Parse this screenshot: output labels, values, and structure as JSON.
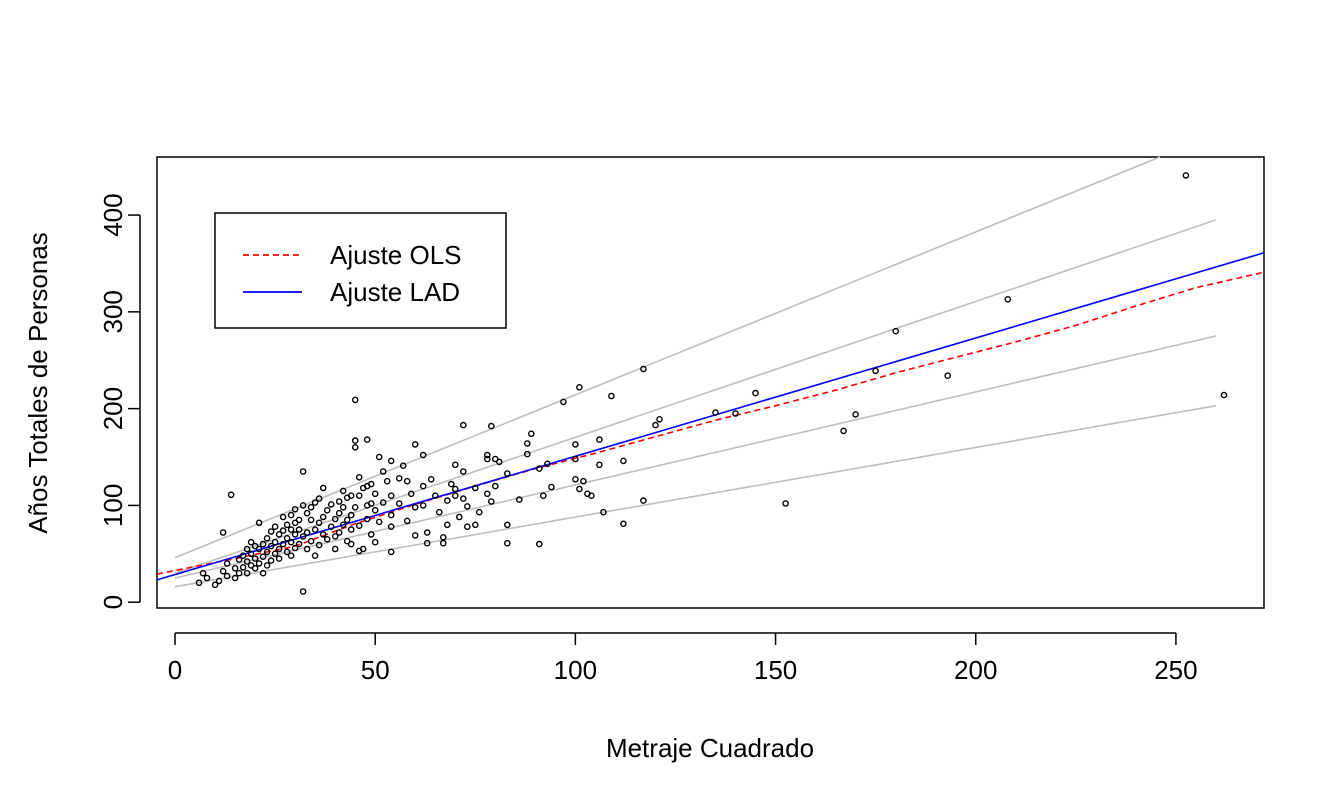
{
  "chart_data": {
    "type": "scatter",
    "title": "",
    "xlabel": "Metraje Cuadrado",
    "ylabel": "Años Totales de Personas",
    "xlim": [
      -4.5,
      272
    ],
    "ylim": [
      -6,
      460
    ],
    "xticks": [
      0,
      50,
      100,
      150,
      200,
      250
    ],
    "yticks": [
      0,
      100,
      200,
      300,
      400
    ],
    "grid": false,
    "legend": {
      "placement": "top-left",
      "entries": [
        {
          "label": "Ajuste OLS",
          "color": "#ff0000",
          "style": "dashed"
        },
        {
          "label": "Ajuste LAD",
          "color": "#0000ff",
          "style": "solid"
        }
      ]
    },
    "lines": [
      {
        "name": "Ajuste OLS",
        "color": "#ff0000",
        "style": "dashed",
        "points": [
          [
            -4.5,
            29
          ],
          [
            15,
            45
          ],
          [
            30,
            58
          ],
          [
            45,
            81
          ],
          [
            60,
            101
          ],
          [
            75,
            120
          ],
          [
            90,
            138
          ],
          [
            105,
            154
          ],
          [
            120,
            171
          ],
          [
            135,
            188
          ],
          [
            150,
            203
          ],
          [
            165,
            219
          ],
          [
            180,
            237
          ],
          [
            195,
            253
          ],
          [
            210,
            269
          ],
          [
            225,
            286
          ],
          [
            240,
            306
          ],
          [
            255,
            325
          ],
          [
            272,
            341
          ]
        ]
      },
      {
        "name": "Ajuste LAD",
        "color": "#0000ff",
        "style": "solid",
        "points": [
          [
            -4.5,
            23
          ],
          [
            272,
            361
          ]
        ]
      },
      {
        "color": "#bebebe",
        "style": "solid",
        "points": [
          [
            0,
            46
          ],
          [
            246,
            460
          ]
        ]
      },
      {
        "color": "#bebebe",
        "style": "solid",
        "points": [
          [
            0,
            30
          ],
          [
            260,
            395
          ]
        ]
      },
      {
        "color": "#bebebe",
        "style": "solid",
        "points": [
          [
            0,
            25
          ],
          [
            260,
            275
          ]
        ]
      },
      {
        "color": "#bebebe",
        "style": "solid",
        "points": [
          [
            0,
            16
          ],
          [
            260,
            203
          ]
        ]
      }
    ],
    "points": [
      [
        252.5,
        441
      ],
      [
        262,
        214
      ],
      [
        208,
        313
      ],
      [
        180,
        280
      ],
      [
        175,
        239
      ],
      [
        193,
        234
      ],
      [
        170,
        194
      ],
      [
        167,
        177
      ],
      [
        152.5,
        102
      ],
      [
        145,
        216
      ],
      [
        140,
        195
      ],
      [
        135,
        196
      ],
      [
        117,
        241
      ],
      [
        109,
        213
      ],
      [
        101,
        222
      ],
      [
        97,
        207
      ],
      [
        117,
        105
      ],
      [
        112,
        81
      ],
      [
        121,
        189
      ],
      [
        120,
        183
      ],
      [
        112,
        146
      ],
      [
        106,
        168
      ],
      [
        107,
        93
      ],
      [
        106,
        142
      ],
      [
        104,
        110
      ],
      [
        103,
        112
      ],
      [
        102,
        125
      ],
      [
        101,
        117
      ],
      [
        100,
        127
      ],
      [
        100,
        163
      ],
      [
        100,
        148
      ],
      [
        91,
        60
      ],
      [
        91,
        138
      ],
      [
        93,
        143
      ],
      [
        94,
        119
      ],
      [
        92,
        110
      ],
      [
        89,
        174
      ],
      [
        88,
        164
      ],
      [
        88,
        153
      ],
      [
        83,
        61
      ],
      [
        83,
        80
      ],
      [
        83,
        133
      ],
      [
        86,
        106
      ],
      [
        80,
        148
      ],
      [
        81,
        145
      ],
      [
        78,
        152
      ],
      [
        78,
        148
      ],
      [
        79,
        182
      ],
      [
        78,
        112
      ],
      [
        79,
        104
      ],
      [
        80,
        120
      ],
      [
        76,
        93
      ],
      [
        75,
        118
      ],
      [
        75,
        80
      ],
      [
        72,
        183
      ],
      [
        72,
        135
      ],
      [
        72,
        107
      ],
      [
        73,
        99
      ],
      [
        73,
        78
      ],
      [
        71,
        88
      ],
      [
        70,
        117
      ],
      [
        70,
        142
      ],
      [
        70,
        110
      ],
      [
        69,
        122
      ],
      [
        68,
        105
      ],
      [
        68,
        80
      ],
      [
        67,
        67
      ],
      [
        67,
        61
      ],
      [
        66,
        93
      ],
      [
        65,
        110
      ],
      [
        64,
        127
      ],
      [
        63,
        72
      ],
      [
        63,
        61
      ],
      [
        62,
        152
      ],
      [
        62,
        120
      ],
      [
        62,
        100
      ],
      [
        60,
        163
      ],
      [
        60,
        98
      ],
      [
        60,
        69
      ],
      [
        59,
        112
      ],
      [
        58,
        125
      ],
      [
        58,
        84
      ],
      [
        57,
        141
      ],
      [
        56,
        128
      ],
      [
        56,
        102
      ],
      [
        54,
        146
      ],
      [
        54,
        110
      ],
      [
        54,
        90
      ],
      [
        54,
        78
      ],
      [
        54,
        52
      ],
      [
        53,
        125
      ],
      [
        52,
        135
      ],
      [
        52,
        103
      ],
      [
        51,
        150
      ],
      [
        51,
        83
      ],
      [
        50,
        112
      ],
      [
        50,
        95
      ],
      [
        50,
        62
      ],
      [
        49,
        122
      ],
      [
        49,
        102
      ],
      [
        49,
        70
      ],
      [
        48,
        168
      ],
      [
        48,
        120
      ],
      [
        48,
        100
      ],
      [
        48,
        86
      ],
      [
        47,
        118
      ],
      [
        47,
        55
      ],
      [
        46,
        129
      ],
      [
        46,
        110
      ],
      [
        46,
        79
      ],
      [
        46,
        53
      ],
      [
        45,
        209
      ],
      [
        45,
        167
      ],
      [
        45,
        160
      ],
      [
        45,
        98
      ],
      [
        44,
        110
      ],
      [
        44,
        90
      ],
      [
        44,
        75
      ],
      [
        44,
        60
      ],
      [
        43,
        108
      ],
      [
        43,
        85
      ],
      [
        43,
        63
      ],
      [
        42,
        115
      ],
      [
        42,
        98
      ],
      [
        42,
        80
      ],
      [
        41,
        104
      ],
      [
        41,
        92
      ],
      [
        41,
        72
      ],
      [
        40,
        86
      ],
      [
        40,
        68
      ],
      [
        40,
        55
      ],
      [
        39,
        101
      ],
      [
        39,
        78
      ],
      [
        38,
        95
      ],
      [
        38,
        65
      ],
      [
        37,
        118
      ],
      [
        37,
        88
      ],
      [
        37,
        70
      ],
      [
        36,
        107
      ],
      [
        36,
        82
      ],
      [
        36,
        59
      ],
      [
        35,
        103
      ],
      [
        35,
        75
      ],
      [
        35,
        48
      ],
      [
        34,
        98
      ],
      [
        34,
        85
      ],
      [
        34,
        63
      ],
      [
        33,
        92
      ],
      [
        33,
        72
      ],
      [
        33,
        55
      ],
      [
        32,
        135
      ],
      [
        32,
        100
      ],
      [
        32,
        68
      ],
      [
        32,
        11
      ],
      [
        31,
        85
      ],
      [
        31,
        75
      ],
      [
        31,
        60
      ],
      [
        30,
        96
      ],
      [
        30,
        82
      ],
      [
        30,
        70
      ],
      [
        30,
        56
      ],
      [
        29,
        90
      ],
      [
        29,
        75
      ],
      [
        29,
        62
      ],
      [
        29,
        48
      ],
      [
        28,
        80
      ],
      [
        28,
        66
      ],
      [
        28,
        52
      ],
      [
        27,
        88
      ],
      [
        27,
        74
      ],
      [
        27,
        60
      ],
      [
        26,
        70
      ],
      [
        26,
        55
      ],
      [
        26,
        45
      ],
      [
        25,
        78
      ],
      [
        25,
        62
      ],
      [
        25,
        50
      ],
      [
        24,
        73
      ],
      [
        24,
        58
      ],
      [
        24,
        43
      ],
      [
        23,
        66
      ],
      [
        23,
        52
      ],
      [
        23,
        38
      ],
      [
        22,
        60
      ],
      [
        22,
        47
      ],
      [
        22,
        30
      ],
      [
        21,
        82
      ],
      [
        21,
        55
      ],
      [
        21,
        40
      ],
      [
        20,
        58
      ],
      [
        20,
        45
      ],
      [
        20,
        35
      ],
      [
        19,
        62
      ],
      [
        19,
        50
      ],
      [
        19,
        38
      ],
      [
        18,
        55
      ],
      [
        18,
        42
      ],
      [
        18,
        30
      ],
      [
        17,
        48
      ],
      [
        17,
        36
      ],
      [
        16,
        44
      ],
      [
        16,
        30
      ],
      [
        15,
        35
      ],
      [
        15,
        25
      ],
      [
        14,
        111
      ],
      [
        13,
        40
      ],
      [
        13,
        27
      ],
      [
        12,
        72
      ],
      [
        12,
        32
      ],
      [
        11,
        22
      ],
      [
        10,
        18
      ],
      [
        8,
        25
      ],
      [
        6,
        20
      ],
      [
        7,
        30
      ]
    ]
  }
}
